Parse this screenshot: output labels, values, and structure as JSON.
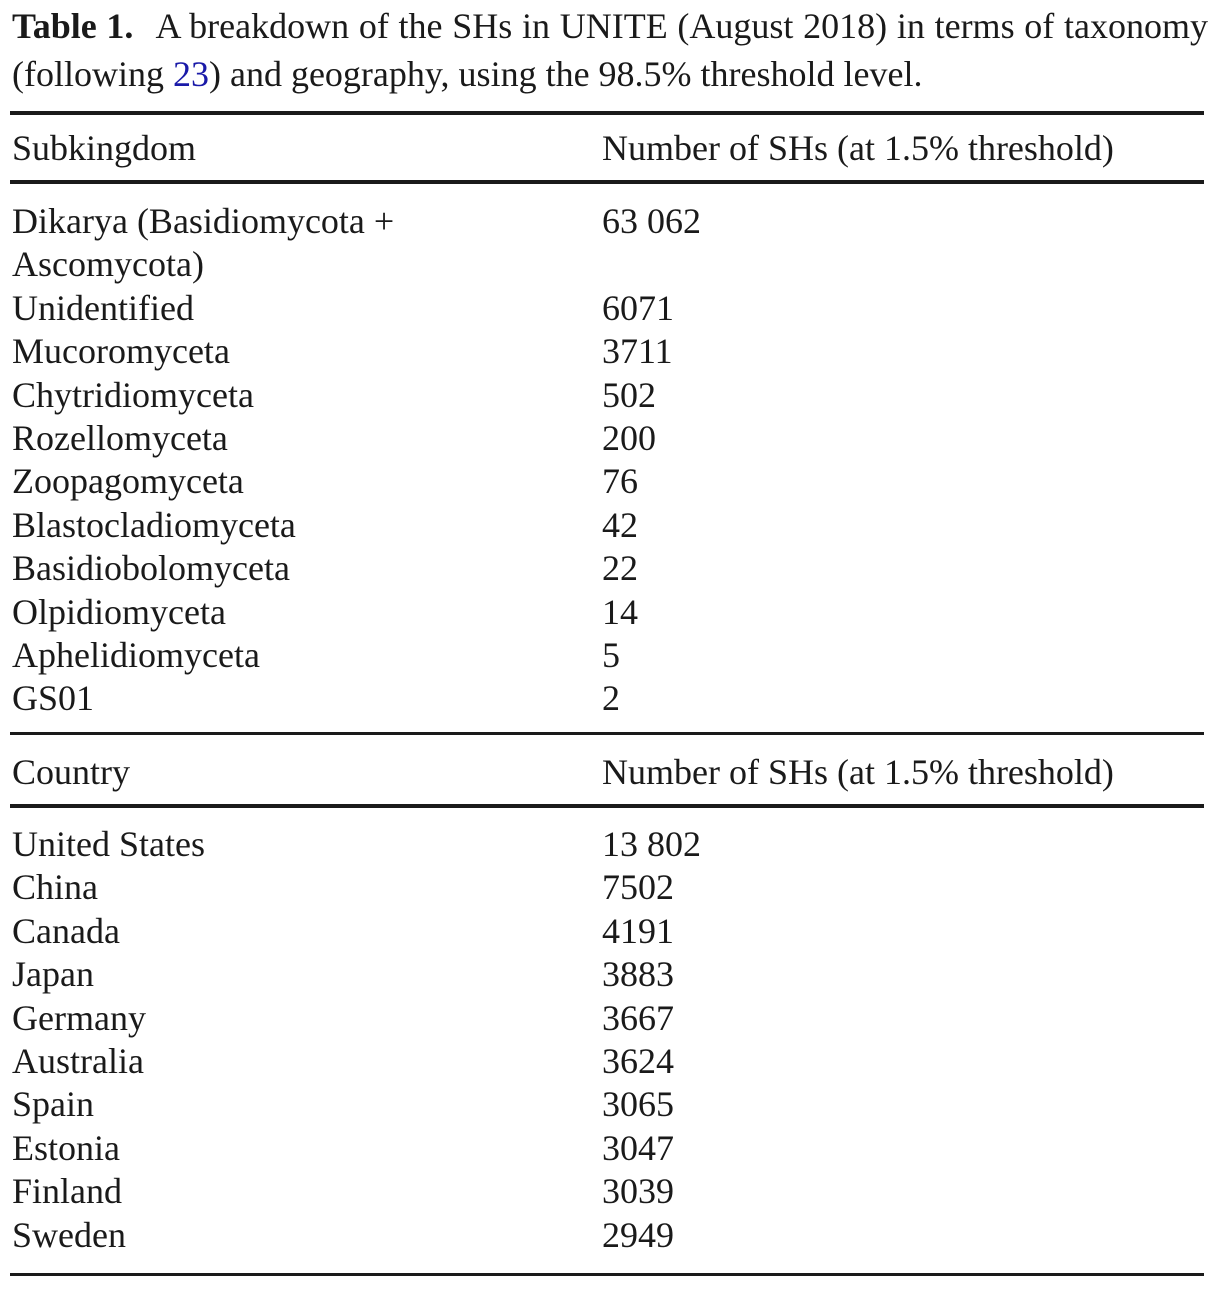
{
  "caption": {
    "label": "Table 1.",
    "text_before_ref": "A breakdown of the SHs in UNITE (August 2018) in terms of taxonomy (following ",
    "ref": "23",
    "text_after_ref": ") and geography, using the 98.5% threshold level."
  },
  "taxonomy": {
    "col1_header": "Subkingdom",
    "col2_header": "Number of SHs (at 1.5% threshold)",
    "rows": [
      {
        "name": "Dikarya (Basidiomycota + Ascomycota)",
        "count": "63 062"
      },
      {
        "name": "Unidentified",
        "count": "6071"
      },
      {
        "name": "Mucoromyceta",
        "count": "3711"
      },
      {
        "name": "Chytridiomyceta",
        "count": "502"
      },
      {
        "name": "Rozellomyceta",
        "count": "200"
      },
      {
        "name": "Zoopagomyceta",
        "count": "76"
      },
      {
        "name": "Blastocladiomyceta",
        "count": "42"
      },
      {
        "name": "Basidiobolomyceta",
        "count": "22"
      },
      {
        "name": "Olpidiomyceta",
        "count": "14"
      },
      {
        "name": "Aphelidiomyceta",
        "count": "5"
      },
      {
        "name": "GS01",
        "count": "2"
      }
    ]
  },
  "geography": {
    "col1_header": "Country",
    "col2_header": "Number of SHs (at 1.5% threshold)",
    "rows": [
      {
        "name": "United States",
        "count": "13 802"
      },
      {
        "name": "China",
        "count": "7502"
      },
      {
        "name": "Canada",
        "count": "4191"
      },
      {
        "name": "Japan",
        "count": "3883"
      },
      {
        "name": "Germany",
        "count": "3667"
      },
      {
        "name": "Australia",
        "count": "3624"
      },
      {
        "name": "Spain",
        "count": "3065"
      },
      {
        "name": "Estonia",
        "count": "3047"
      },
      {
        "name": "Finland",
        "count": "3039"
      },
      {
        "name": "Sweden",
        "count": "2949"
      }
    ]
  }
}
